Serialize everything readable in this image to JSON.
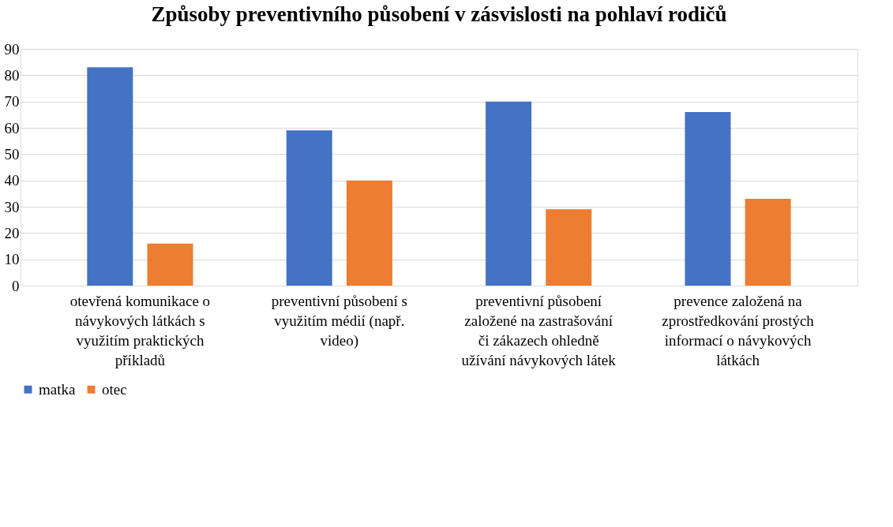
{
  "chart_data": {
    "type": "bar",
    "title": "Způsoby preventivního působení v zásvislosti na pohlaví rodičů",
    "categories": [
      "otevřená komunikace o návykových látkách s využitím praktických příkladů",
      "preventivní působení s využitím médií (např. video)",
      "preventivní působení založené na zastrašování či zákazech ohledně užívání návykových látek",
      "prevence založená na zprostředkování prostých informací o návykových látkách"
    ],
    "series": [
      {
        "name": "matka",
        "color": "#4472c4",
        "values": [
          83,
          59,
          70,
          66
        ]
      },
      {
        "name": "otec",
        "color": "#ed7d31",
        "values": [
          16,
          40,
          29,
          33
        ]
      }
    ],
    "ylim": [
      0,
      90
    ],
    "yticks": [
      0,
      10,
      20,
      30,
      40,
      50,
      60,
      70,
      80,
      90
    ],
    "grid": "y",
    "legend": "bottom"
  }
}
